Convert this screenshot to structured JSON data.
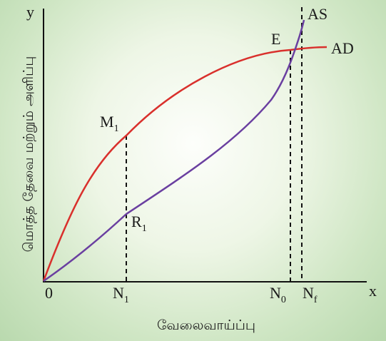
{
  "axes": {
    "y_label": "y",
    "x_label": "x",
    "origin_label": "0",
    "y_title": "மொத்த தேவை மற்றும் அளிப்பு",
    "x_title": "வேலைவாய்ப்பு"
  },
  "curves": {
    "ad": {
      "label": "AD",
      "color": "#d9302c"
    },
    "as": {
      "label": "AS",
      "color": "#6a3fa0"
    }
  },
  "points": {
    "m1": {
      "main": "M",
      "sub": "1"
    },
    "r1": {
      "main": "R",
      "sub": "1"
    },
    "e": {
      "main": "E"
    }
  },
  "x_ticks": {
    "n1": {
      "main": "N",
      "sub": "1"
    },
    "n0": {
      "main": "N",
      "sub": "0"
    },
    "nf": {
      "main": "N",
      "sub": "f"
    }
  }
}
